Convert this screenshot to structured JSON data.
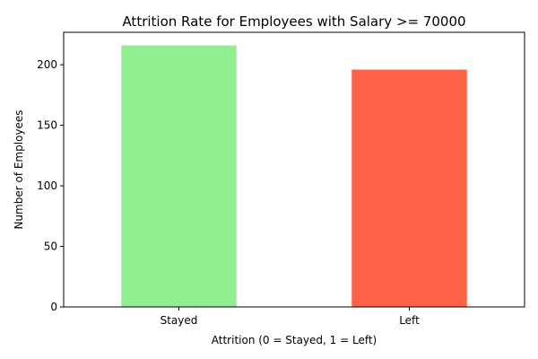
{
  "chart_data": {
    "type": "bar",
    "title": "Attrition Rate for Employees with Salary >= 70000",
    "xlabel": "Attrition (0 = Stayed, 1 = Left)",
    "ylabel": "Number of Employees",
    "categories": [
      "Stayed",
      "Left"
    ],
    "values": [
      216,
      196
    ],
    "colors": [
      "#90ee90",
      "#ff6347"
    ],
    "ylim": [
      0,
      226.8
    ],
    "yticks": [
      0,
      50,
      100,
      150,
      200
    ],
    "grid": false,
    "legend": "none"
  }
}
